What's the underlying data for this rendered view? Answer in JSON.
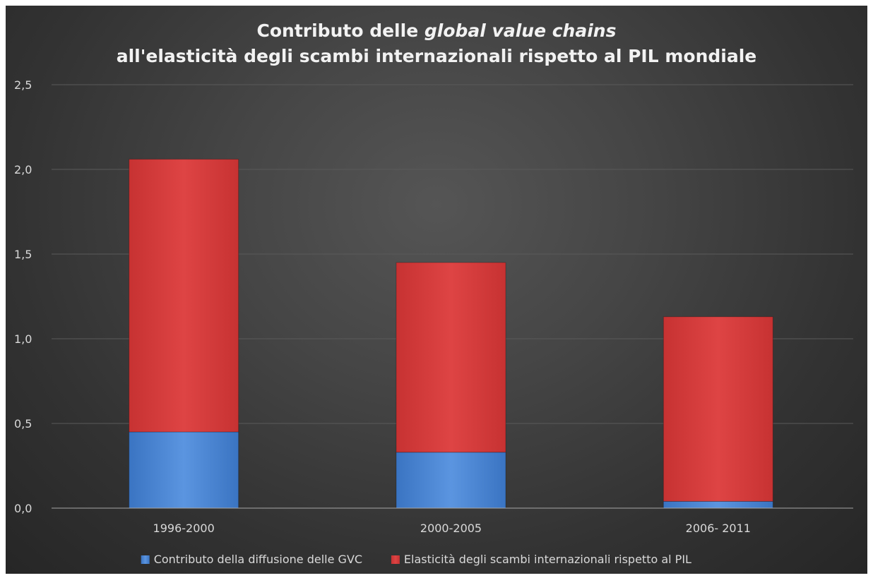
{
  "chart_data": {
    "type": "bar",
    "stacked": true,
    "title_parts": [
      {
        "text": "Contributo delle ",
        "italic": false
      },
      {
        "text": "global value chains",
        "italic": true
      }
    ],
    "title_line2": "all'elasticità degli scambi internazionali rispetto al PIL mondiale",
    "categories": [
      "1996-2000",
      "2000-2005",
      "2006- 2011"
    ],
    "series": [
      {
        "name": "Contributo della diffusione delle GVC",
        "values": [
          0.45,
          0.33,
          0.04
        ],
        "color": "#4a86d4"
      },
      {
        "name": "Elasticità degli scambi internazionali rispetto al PIL",
        "values": [
          1.61,
          1.12,
          1.09
        ],
        "color": "#d63c3c"
      }
    ],
    "ylim": [
      0,
      2.5
    ],
    "yticks": [
      "0,0",
      "0,5",
      "1,0",
      "1,5",
      "2,0",
      "2,5"
    ],
    "ytick_values": [
      0,
      0.5,
      1.0,
      1.5,
      2.0,
      2.5
    ],
    "grid": true,
    "legend_position": "bottom",
    "background": "#3f3f3f"
  }
}
